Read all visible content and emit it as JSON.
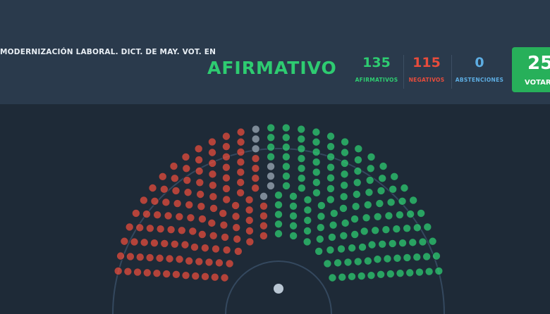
{
  "header": {
    "title": "MODERNIZACIÓN LABORAL. DICT. DE MAY. VOT. EN",
    "result": "AFIRMATIVO"
  },
  "counts": [
    {
      "value": 135,
      "label": "AFIRMATIVOS",
      "color": "#2ecc71"
    },
    {
      "value": 115,
      "label": "NEGATIVOS",
      "color": "#e74c3c"
    },
    {
      "value": 0,
      "label": "ABSTENCIONES",
      "color": "#5dade2"
    }
  ],
  "total": {
    "value": "25",
    "label": "VOTAR"
  }
}
